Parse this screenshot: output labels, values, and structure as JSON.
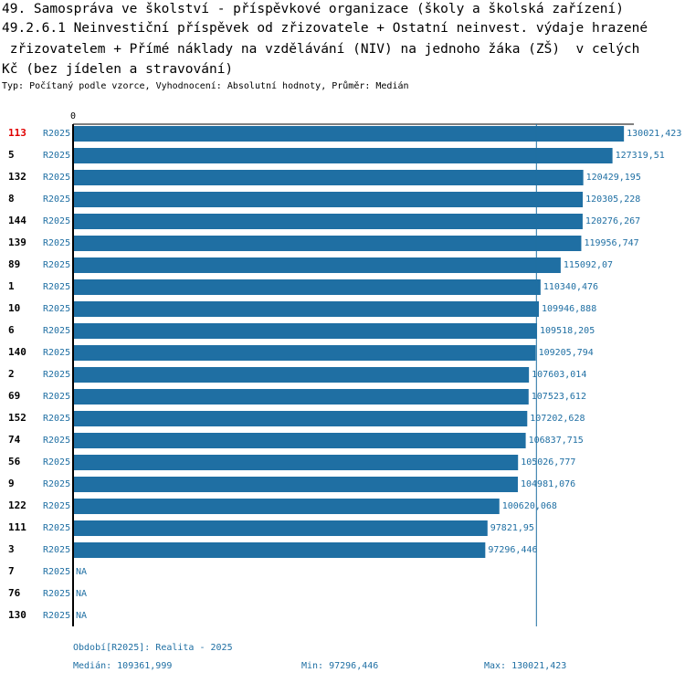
{
  "title_lines": [
    "49. Samospráva ve školství - příspěvkové organizace (školy a školská zařízení)",
    "49.2.6.1 Neinvestiční příspěvek od zřizovatele + Ostatní neinvest. výdaje hrazené",
    " zřizovatelem + Přímé náklady na vzdělávání (NIV) na jednoho žáka (ZŠ)  v celých",
    "Kč (bez jídelen a stravování)"
  ],
  "subtitle": "Typ: Počítaný podle vzorce, Vyhodnocení: Absolutní hodnoty, Průměr: Medián",
  "chart_data": {
    "type": "bar",
    "orientation": "horizontal",
    "axis_zero_label": "0",
    "xlim": [
      0,
      131500
    ],
    "period": "R2025",
    "highlighted_id": "113",
    "reference_line": {
      "label": "Medián",
      "value": 109361.999
    },
    "rows": [
      {
        "id": "113",
        "period": "R2025",
        "value": 130021.423,
        "label": "130021,423"
      },
      {
        "id": "5",
        "period": "R2025",
        "value": 127319.51,
        "label": "127319,51"
      },
      {
        "id": "132",
        "period": "R2025",
        "value": 120429.195,
        "label": "120429,195"
      },
      {
        "id": "8",
        "period": "R2025",
        "value": 120305.228,
        "label": "120305,228"
      },
      {
        "id": "144",
        "period": "R2025",
        "value": 120276.267,
        "label": "120276,267"
      },
      {
        "id": "139",
        "period": "R2025",
        "value": 119956.747,
        "label": "119956,747"
      },
      {
        "id": "89",
        "period": "R2025",
        "value": 115092.07,
        "label": "115092,07"
      },
      {
        "id": "1",
        "period": "R2025",
        "value": 110340.476,
        "label": "110340,476"
      },
      {
        "id": "10",
        "period": "R2025",
        "value": 109946.888,
        "label": "109946,888"
      },
      {
        "id": "6",
        "period": "R2025",
        "value": 109518.205,
        "label": "109518,205"
      },
      {
        "id": "140",
        "period": "R2025",
        "value": 109205.794,
        "label": "109205,794"
      },
      {
        "id": "2",
        "period": "R2025",
        "value": 107603.014,
        "label": "107603,014"
      },
      {
        "id": "69",
        "period": "R2025",
        "value": 107523.612,
        "label": "107523,612"
      },
      {
        "id": "152",
        "period": "R2025",
        "value": 107202.628,
        "label": "107202,628"
      },
      {
        "id": "74",
        "period": "R2025",
        "value": 106837.715,
        "label": "106837,715"
      },
      {
        "id": "56",
        "period": "R2025",
        "value": 105026.777,
        "label": "105026,777"
      },
      {
        "id": "9",
        "period": "R2025",
        "value": 104981.076,
        "label": "104981,076"
      },
      {
        "id": "122",
        "period": "R2025",
        "value": 100620.068,
        "label": "100620,068"
      },
      {
        "id": "111",
        "period": "R2025",
        "value": 97821.95,
        "label": "97821,95"
      },
      {
        "id": "3",
        "period": "R2025",
        "value": 97296.446,
        "label": "97296,446"
      },
      {
        "id": "7",
        "period": "R2025",
        "value": null,
        "label": "NA"
      },
      {
        "id": "76",
        "period": "R2025",
        "value": null,
        "label": "NA"
      },
      {
        "id": "130",
        "period": "R2025",
        "value": null,
        "label": "NA"
      }
    ]
  },
  "footer": {
    "period_note": "Období[R2025]: Realita - 2025",
    "median": "Medián: 109361,999",
    "min": "Min: 97296,446",
    "max": "Max: 130021,423"
  },
  "colors": {
    "bar": "#1f6fa3",
    "text_accent": "#1f6fa3",
    "highlight": "#e00000"
  }
}
